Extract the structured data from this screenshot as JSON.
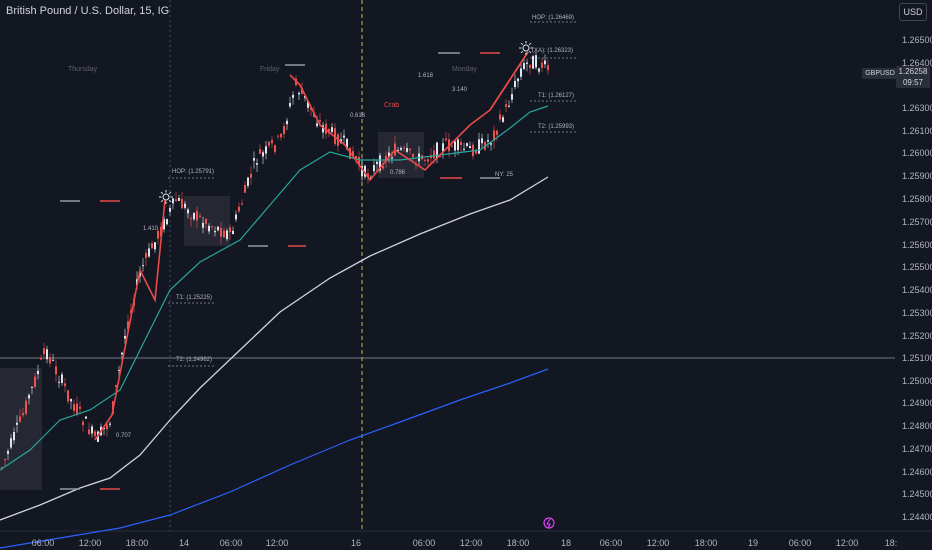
{
  "header": {
    "title": "British Pound / U.S. Dollar, 15, IG",
    "currency_button": "USD"
  },
  "price_axis": {
    "ticks": [
      "1.26500",
      "1.26400",
      "1.26300",
      "1.26100",
      "1.26000",
      "1.25900",
      "1.25800",
      "1.25700",
      "1.25600",
      "1.25500",
      "1.25400",
      "1.25300",
      "1.25200",
      "1.25100",
      "1.25000",
      "1.24900",
      "1.24800",
      "1.24700",
      "1.24600",
      "1.24500",
      "1.24400",
      "1.24300"
    ],
    "symbol_tag": "GBPUSD",
    "last_price": "1.26258",
    "countdown": "09:57"
  },
  "time_axis": {
    "ticks": [
      "06:00",
      "12:00",
      "18:00",
      "14",
      "06:00",
      "12:00",
      "16",
      "06:00",
      "12:00",
      "18:00",
      "18",
      "06:00",
      "12:00",
      "18:00",
      "19",
      "06:00",
      "12:00",
      "18:"
    ]
  },
  "day_labels": [
    "Thursday",
    "Friday",
    "Monday"
  ],
  "pattern": {
    "name": "Crab"
  },
  "annotations": {
    "hop_top": "HOP: (1.26469)",
    "xa_top": "(XA): (1.26323)",
    "t1_top": "T1: (1.26127)",
    "t2_top": "T2: (1.25993)",
    "hop_left": "HOP: (1.25791)",
    "t1_left": "T1: (1.25225)",
    "t2_left": "T2: (1.24962)",
    "ratio_1618": "1.618",
    "ratio_3140": "3.140",
    "ratio_0618": "0.618",
    "ratio_0786": "0.786",
    "ratio_1410": "1.410",
    "ratio_0707": "0.707",
    "ny_label": "NY: 25"
  },
  "colors": {
    "background": "#131722",
    "bull_candle": "#e0e3eb",
    "bear_candle": "#ef5350",
    "pattern_line": "#e84a4a",
    "ema_fast": "#26a69a",
    "ema_slow": "#d1d4dc",
    "ema_long": "#2962ff"
  },
  "chart_data": {
    "type": "line",
    "symbol": "GBPUSD",
    "interval": "15",
    "ylim": [
      1.2425,
      1.2655
    ],
    "series": [
      {
        "x": [
          "06:00",
          "12:00",
          "18:00",
          "14",
          "06:00",
          "12:00",
          "16",
          "06:00",
          "12:00",
          "18:00"
        ],
        "values": [
          1.2455,
          1.2475,
          1.249,
          1.2565,
          1.2575,
          1.261,
          1.2585,
          1.2595,
          1.26,
          1.2626
        ]
      },
      {
        "x": [
          "06:00",
          "12:00",
          "18:00",
          "14",
          "06:00",
          "12:00",
          "16",
          "06:00",
          "12:00",
          "18:00"
        ],
        "values": [
          1.2445,
          1.246,
          1.248,
          1.254,
          1.256,
          1.2585,
          1.259,
          1.2592,
          1.2598,
          1.2612
        ]
      },
      {
        "x": [
          "06:00",
          "12:00",
          "18:00",
          "14",
          "06:00",
          "12:00",
          "16",
          "06:00",
          "12:00",
          "18:00"
        ],
        "values": [
          1.244,
          1.2445,
          1.2455,
          1.248,
          1.25,
          1.253,
          1.2545,
          1.2555,
          1.2565,
          1.258
        ]
      },
      {
        "x": [
          "06:00",
          "12:00",
          "18:00",
          "14",
          "06:00",
          "12:00",
          "16",
          "06:00",
          "12:00",
          "18:00"
        ],
        "values": [
          1.2425,
          1.2428,
          1.2432,
          1.2438,
          1.2445,
          1.2455,
          1.2465,
          1.2475,
          1.2485,
          1.2495
        ]
      }
    ]
  }
}
